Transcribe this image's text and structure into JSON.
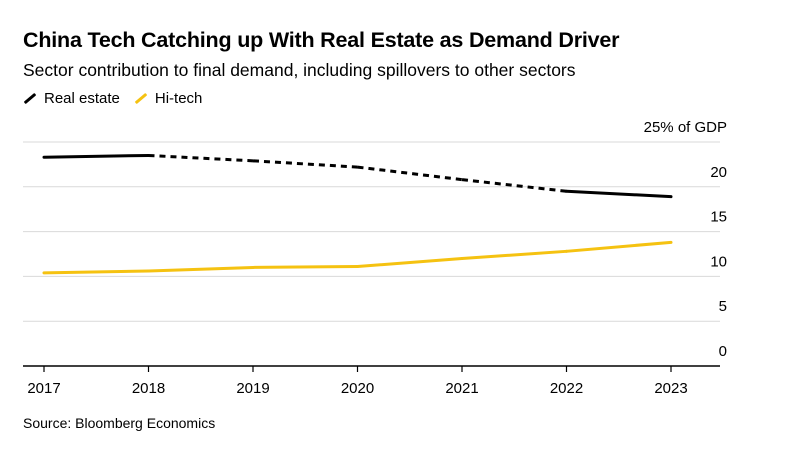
{
  "title": "China Tech Catching up With Real Estate as Demand Driver",
  "subtitle": "Sector contribution to final demand, including spillovers to other sectors",
  "source": "Source: Bloomberg Economics",
  "colors": {
    "real_estate": "#000000",
    "hi_tech": "#f5c211",
    "grid": "#d9d9d9",
    "axis": "#000000"
  },
  "chart_data": {
    "type": "line",
    "title": "China Tech Catching up With Real Estate as Demand Driver",
    "subtitle": "Sector contribution to final demand, including spillovers to other sectors",
    "x": [
      2017,
      2018,
      2019,
      2020,
      2021,
      2022,
      2023
    ],
    "x_tick_labels": [
      "2017",
      "2018",
      "2019",
      "2020",
      "2021",
      "2022",
      "2023"
    ],
    "y_ticks": [
      0,
      5,
      10,
      15,
      20,
      25
    ],
    "y_tick_labels": [
      "0",
      "5",
      "10",
      "15",
      "20",
      "25% of GDP"
    ],
    "ylim": [
      0,
      25
    ],
    "grid": true,
    "legend_placement": "top-left",
    "series": [
      {
        "name": "Real estate",
        "color": "#000000",
        "values": [
          23.3,
          23.5,
          22.9,
          22.2,
          20.8,
          19.5,
          18.9
        ],
        "dashed_segments": [
          [
            2018,
            2022
          ]
        ]
      },
      {
        "name": "Hi-tech",
        "color": "#f5c211",
        "values": [
          10.4,
          10.6,
          11.0,
          11.1,
          12.0,
          12.8,
          13.8
        ]
      }
    ]
  }
}
